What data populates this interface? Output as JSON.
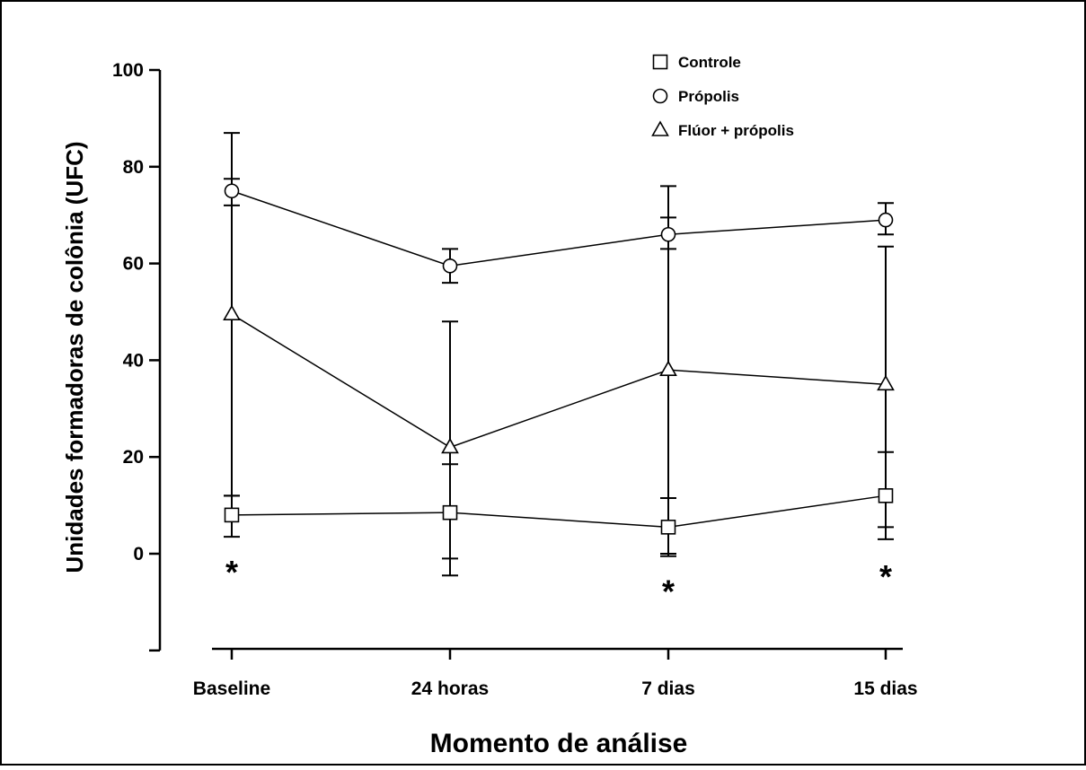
{
  "chart_data": {
    "type": "line",
    "categories": [
      "Baseline",
      "24 horas",
      "7 dias",
      "15 dias"
    ],
    "xlabel": "Momento de análise",
    "ylabel": "Unidades formadoras de colônia (UFC)",
    "yticks": [
      0,
      20,
      40,
      60,
      80,
      100
    ],
    "ylim": [
      -20,
      100
    ],
    "legend_position": "top-right",
    "series": [
      {
        "name": "Controle",
        "marker": "square",
        "values": [
          8,
          8.5,
          5.5,
          12
        ],
        "err_upper": [
          12,
          18.5,
          11.5,
          21
        ],
        "err_lower": [
          3.5,
          -1,
          -0.5,
          3
        ]
      },
      {
        "name": "Própolis",
        "marker": "circle",
        "values": [
          75,
          59.5,
          66,
          69
        ],
        "err_upper": [
          87,
          63,
          76,
          72.5
        ],
        "err_lower": [
          72,
          56,
          63,
          66
        ]
      },
      {
        "name": "Flúor + própolis",
        "marker": "triangle",
        "values": [
          49.5,
          22,
          38,
          35
        ],
        "err_upper": [
          77.5,
          48,
          69.5,
          63.5
        ],
        "err_lower": [
          12,
          -4.5,
          0,
          5.5
        ]
      }
    ],
    "annotations": [
      {
        "text": "*",
        "category_index": 0,
        "y": -2
      },
      {
        "text": "*",
        "category_index": 2,
        "y": -6
      },
      {
        "text": "*",
        "category_index": 3,
        "y": -3
      }
    ]
  }
}
